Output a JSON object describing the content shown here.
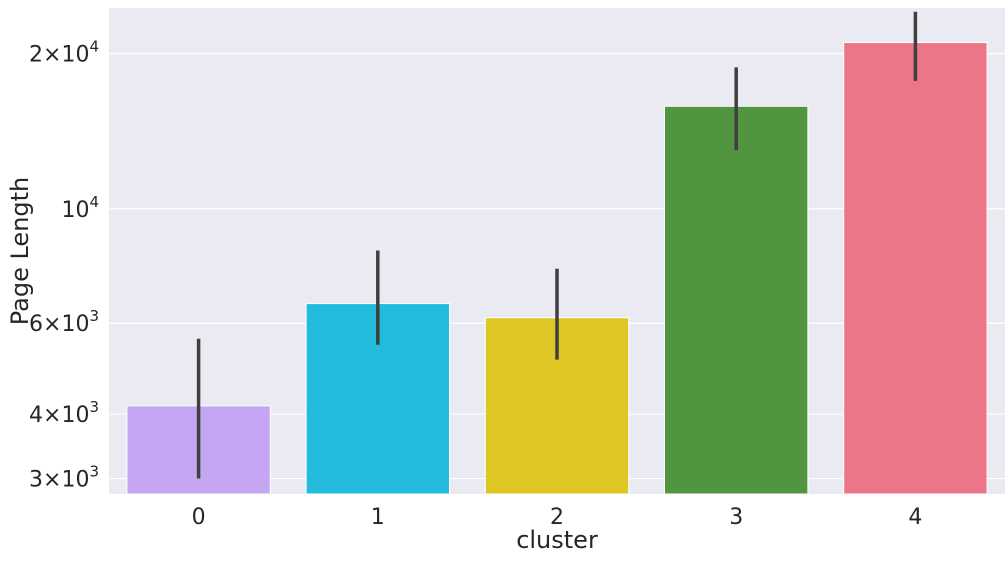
{
  "chart_data": {
    "type": "bar",
    "xlabel": "cluster",
    "ylabel": "Page Length",
    "yscale": "log",
    "ylim": [
      2800,
      24500
    ],
    "grid": true,
    "background": "#eaeaf2",
    "categories": [
      "0",
      "1",
      "2",
      "3",
      "4"
    ],
    "values": [
      4150,
      6550,
      6150,
      15800,
      21000
    ],
    "error_low": [
      3000,
      5450,
      5100,
      13000,
      17700
    ],
    "error_high": [
      5600,
      8300,
      7650,
      18800,
      24100
    ],
    "colors": [
      "#c4a6f2",
      "#23bbdc",
      "#dec724",
      "#529541",
      "#ec7587"
    ],
    "yticks": [
      {
        "value": 3000,
        "mantissa": "3",
        "base": "10",
        "exponent": "3"
      },
      {
        "value": 4000,
        "mantissa": "4",
        "base": "10",
        "exponent": "3"
      },
      {
        "value": 6000,
        "mantissa": "6",
        "base": "10",
        "exponent": "3"
      },
      {
        "value": 10000,
        "mantissa": "",
        "base": "10",
        "exponent": "4"
      },
      {
        "value": 20000,
        "mantissa": "2",
        "base": "10",
        "exponent": "4"
      }
    ]
  }
}
